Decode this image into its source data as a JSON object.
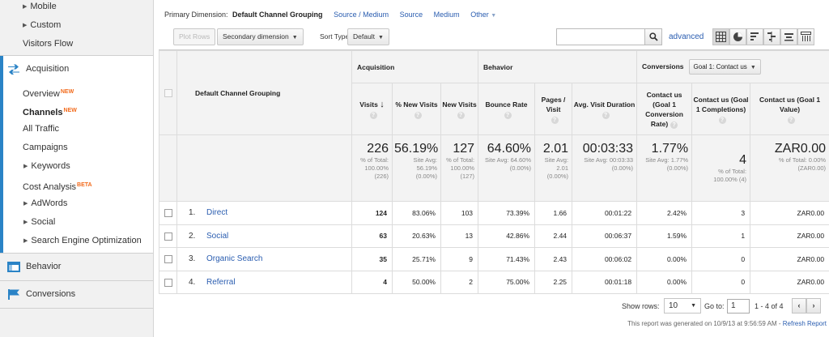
{
  "sidebar": {
    "items_top": [
      {
        "label": "Mobile",
        "arrow": true
      },
      {
        "label": "Custom",
        "arrow": true
      },
      {
        "label": "Visitors Flow",
        "arrow": false
      }
    ],
    "acquisition": {
      "label": "Acquisition",
      "items": [
        {
          "label": "Overview",
          "badge": "NEW",
          "active": false,
          "arrow": false
        },
        {
          "label": "Channels",
          "badge": "NEW",
          "active": true,
          "arrow": false
        },
        {
          "label": "All Traffic",
          "badge": "",
          "active": false,
          "arrow": false
        },
        {
          "label": "Campaigns",
          "badge": "",
          "active": false,
          "arrow": false
        },
        {
          "label": "Keywords",
          "badge": "",
          "active": false,
          "arrow": true
        },
        {
          "label": "Cost Analysis",
          "badge": "BETA",
          "active": false,
          "arrow": false
        },
        {
          "label": "AdWords",
          "badge": "",
          "active": false,
          "arrow": true
        },
        {
          "label": "Social",
          "badge": "",
          "active": false,
          "arrow": true
        },
        {
          "label": "Search Engine Optimization",
          "badge": "",
          "active": false,
          "arrow": true
        }
      ]
    },
    "behavior_label": "Behavior",
    "conversions_label": "Conversions"
  },
  "primary_dimension": {
    "label": "Primary Dimension:",
    "current": "Default Channel Grouping",
    "links": [
      "Source / Medium",
      "Source",
      "Medium",
      "Other"
    ]
  },
  "toolbar": {
    "plot_rows": "Plot Rows",
    "secondary_dimension": "Secondary dimension",
    "sort_type_label": "Sort Type:",
    "sort_type_value": "Default",
    "search_value": "",
    "advanced": "advanced"
  },
  "table": {
    "groups": {
      "dimension": "Default Channel Grouping",
      "acquisition": "Acquisition",
      "behavior": "Behavior",
      "conversions": "Conversions",
      "goal_select": "Goal 1: Contact us"
    },
    "columns": [
      "Visits",
      "% New Visits",
      "New Visits",
      "Bounce Rate",
      "Pages / Visit",
      "Avg. Visit Duration",
      "Contact us (Goal 1 Conversion Rate)",
      "Contact us (Goal 1 Completions)",
      "Contact us (Goal 1 Value)"
    ],
    "totals": [
      {
        "big": "226",
        "sub": "% of Total: 100.00% (226)"
      },
      {
        "big": "56.19%",
        "sub": "Site Avg: 56.19% (0.00%)"
      },
      {
        "big": "127",
        "sub": "% of Total: 100.00% (127)"
      },
      {
        "big": "64.60%",
        "sub": "Site Avg: 64.60% (0.00%)"
      },
      {
        "big": "2.01",
        "sub": "Site Avg: 2.01 (0.00%)"
      },
      {
        "big": "00:03:33",
        "sub": "Site Avg: 00:03:33 (0.00%)"
      },
      {
        "big": "1.77%",
        "sub": "Site Avg: 1.77% (0.00%)"
      },
      {
        "big": "4",
        "sub": "% of Total: 100.00% (4)"
      },
      {
        "big": "ZAR0.00",
        "sub": "% of Total: 0.00% (ZAR0.00)"
      }
    ],
    "rows": [
      {
        "idx": "1.",
        "name": "Direct",
        "values": [
          "124",
          "83.06%",
          "103",
          "73.39%",
          "1.66",
          "00:01:22",
          "2.42%",
          "3",
          "ZAR0.00"
        ]
      },
      {
        "idx": "2.",
        "name": "Social",
        "values": [
          "63",
          "20.63%",
          "13",
          "42.86%",
          "2.44",
          "00:06:37",
          "1.59%",
          "1",
          "ZAR0.00"
        ]
      },
      {
        "idx": "3.",
        "name": "Organic Search",
        "values": [
          "35",
          "25.71%",
          "9",
          "71.43%",
          "2.43",
          "00:06:02",
          "0.00%",
          "0",
          "ZAR0.00"
        ]
      },
      {
        "idx": "4.",
        "name": "Referral",
        "values": [
          "4",
          "50.00%",
          "2",
          "75.00%",
          "2.25",
          "00:01:18",
          "0.00%",
          "0",
          "ZAR0.00"
        ]
      }
    ]
  },
  "pagination": {
    "show_rows_label": "Show rows:",
    "show_rows_value": "10",
    "goto_label": "Go to:",
    "goto_value": "1",
    "range": "1 - 4 of 4"
  },
  "footer": {
    "generated": "This report was generated on 10/9/13 at 9:56:59 AM - ",
    "refresh": "Refresh Report"
  },
  "colors": {
    "accent": "#2a83c6",
    "link": "#2a5db0",
    "badge": "#f26a1b"
  }
}
